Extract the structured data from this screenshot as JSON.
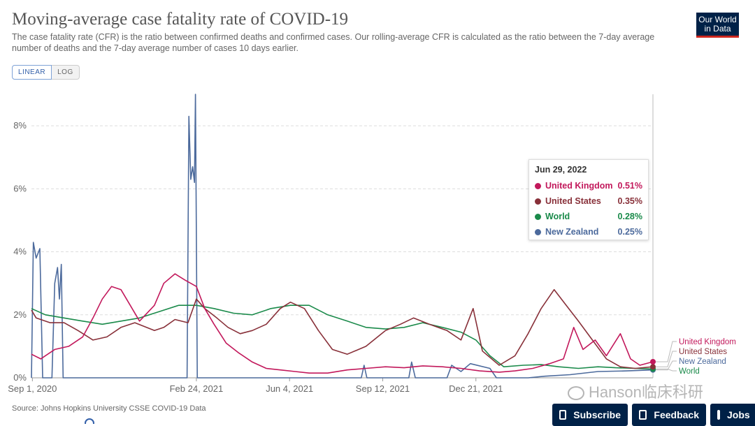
{
  "header": {
    "title": "Moving-average case fatality rate of COVID-19",
    "subtitle": "The case fatality rate (CFR) is the ratio between confirmed deaths and confirmed cases. Our rolling-average CFR is calculated as the ratio between the 7-day average number of deaths and the 7-day average number of cases 10 days earlier.",
    "logo_line1": "Our World",
    "logo_line2": "in Data"
  },
  "scale_toggle": {
    "linear": "LINEAR",
    "log": "LOG"
  },
  "tooltip": {
    "date": "Jun 29, 2022",
    "rows": [
      {
        "name": "United Kingdom",
        "value": "0.51%",
        "color": "#c2185b"
      },
      {
        "name": "United States",
        "value": "0.35%",
        "color": "#883039"
      },
      {
        "name": "World",
        "value": "0.28%",
        "color": "#1a8a4a"
      },
      {
        "name": "New Zealand",
        "value": "0.25%",
        "color": "#4c6a9c"
      }
    ]
  },
  "footer": {
    "source": "Source: Johns Hopkins University CSSE COVID-19 Data",
    "subscribe": "Subscribe",
    "feedback": "Feedback",
    "jobs": "Jobs"
  },
  "watermark": "Hanson临床科研",
  "chart_data": {
    "type": "line",
    "ylim": [
      0,
      9
    ],
    "y_ticks": [
      {
        "value": 0,
        "label": "0%"
      },
      {
        "value": 2,
        "label": "2%"
      },
      {
        "value": 4,
        "label": "4%"
      },
      {
        "value": 6,
        "label": "6%"
      },
      {
        "value": 8,
        "label": "8%"
      }
    ],
    "x_range": [
      "2020-08-31",
      "2022-06-29"
    ],
    "x_ticks": [
      {
        "date": "2020-09-01",
        "label": "Sep 1, 2020"
      },
      {
        "date": "2021-02-24",
        "label": "Feb 24, 2021"
      },
      {
        "date": "2021-06-04",
        "label": "Jun 4, 2021"
      },
      {
        "date": "2021-09-12",
        "label": "Sep 12, 2021"
      },
      {
        "date": "2021-12-21",
        "label": "Dec 21, 2021"
      }
    ],
    "series": [
      {
        "name": "United Kingdom",
        "color": "#c2185b",
        "points": [
          [
            "2020-08-31",
            0.75
          ],
          [
            "2020-09-10",
            0.6
          ],
          [
            "2020-09-25",
            0.9
          ],
          [
            "2020-10-10",
            1.0
          ],
          [
            "2020-10-25",
            1.3
          ],
          [
            "2020-11-05",
            1.9
          ],
          [
            "2020-11-15",
            2.5
          ],
          [
            "2020-11-25",
            2.9
          ],
          [
            "2020-12-05",
            2.8
          ],
          [
            "2020-12-15",
            2.3
          ],
          [
            "2020-12-25",
            1.8
          ],
          [
            "2021-01-10",
            2.3
          ],
          [
            "2021-01-20",
            3.0
          ],
          [
            "2021-02-01",
            3.3
          ],
          [
            "2021-02-12",
            3.1
          ],
          [
            "2021-02-24",
            2.9
          ],
          [
            "2021-03-05",
            2.2
          ],
          [
            "2021-03-15",
            1.7
          ],
          [
            "2021-03-28",
            1.1
          ],
          [
            "2021-04-10",
            0.8
          ],
          [
            "2021-04-25",
            0.5
          ],
          [
            "2021-05-10",
            0.3
          ],
          [
            "2021-05-25",
            0.25
          ],
          [
            "2021-06-10",
            0.2
          ],
          [
            "2021-06-25",
            0.15
          ],
          [
            "2021-07-15",
            0.15
          ],
          [
            "2021-08-05",
            0.25
          ],
          [
            "2021-08-25",
            0.3
          ],
          [
            "2021-09-15",
            0.35
          ],
          [
            "2021-10-05",
            0.32
          ],
          [
            "2021-10-25",
            0.38
          ],
          [
            "2021-11-15",
            0.35
          ],
          [
            "2021-12-05",
            0.3
          ],
          [
            "2021-12-25",
            0.22
          ],
          [
            "2022-01-15",
            0.18
          ],
          [
            "2022-02-01",
            0.22
          ],
          [
            "2022-02-20",
            0.3
          ],
          [
            "2022-03-10",
            0.45
          ],
          [
            "2022-03-25",
            0.6
          ],
          [
            "2022-04-05",
            1.6
          ],
          [
            "2022-04-15",
            0.9
          ],
          [
            "2022-04-28",
            1.2
          ],
          [
            "2022-05-10",
            0.7
          ],
          [
            "2022-05-25",
            1.4
          ],
          [
            "2022-06-05",
            0.6
          ],
          [
            "2022-06-15",
            0.4
          ],
          [
            "2022-06-29",
            0.51
          ]
        ]
      },
      {
        "name": "United States",
        "color": "#883039",
        "points": [
          [
            "2020-08-31",
            2.15
          ],
          [
            "2020-09-05",
            1.9
          ],
          [
            "2020-09-20",
            1.75
          ],
          [
            "2020-10-05",
            1.75
          ],
          [
            "2020-10-20",
            1.5
          ],
          [
            "2020-11-05",
            1.2
          ],
          [
            "2020-11-20",
            1.3
          ],
          [
            "2020-12-05",
            1.6
          ],
          [
            "2020-12-20",
            1.75
          ],
          [
            "2021-01-10",
            1.5
          ],
          [
            "2021-01-20",
            1.6
          ],
          [
            "2021-02-01",
            1.85
          ],
          [
            "2021-02-15",
            1.75
          ],
          [
            "2021-02-24",
            2.5
          ],
          [
            "2021-03-05",
            2.2
          ],
          [
            "2021-03-18",
            1.9
          ],
          [
            "2021-03-30",
            1.6
          ],
          [
            "2021-04-12",
            1.4
          ],
          [
            "2021-04-25",
            1.5
          ],
          [
            "2021-05-10",
            1.7
          ],
          [
            "2021-05-25",
            2.2
          ],
          [
            "2021-06-05",
            2.4
          ],
          [
            "2021-06-20",
            2.2
          ],
          [
            "2021-07-05",
            1.5
          ],
          [
            "2021-07-20",
            0.9
          ],
          [
            "2021-08-05",
            0.75
          ],
          [
            "2021-08-25",
            1.0
          ],
          [
            "2021-09-15",
            1.5
          ],
          [
            "2021-10-01",
            1.7
          ],
          [
            "2021-10-15",
            1.9
          ],
          [
            "2021-11-01",
            1.7
          ],
          [
            "2021-11-20",
            1.5
          ],
          [
            "2021-12-05",
            1.2
          ],
          [
            "2021-12-18",
            2.2
          ],
          [
            "2021-12-28",
            0.85
          ],
          [
            "2022-01-15",
            0.4
          ],
          [
            "2022-02-01",
            0.7
          ],
          [
            "2022-02-15",
            1.4
          ],
          [
            "2022-03-01",
            2.2
          ],
          [
            "2022-03-15",
            2.8
          ],
          [
            "2022-03-28",
            2.3
          ],
          [
            "2022-04-10",
            1.8
          ],
          [
            "2022-04-25",
            1.2
          ],
          [
            "2022-05-10",
            0.6
          ],
          [
            "2022-05-25",
            0.35
          ],
          [
            "2022-06-10",
            0.3
          ],
          [
            "2022-06-29",
            0.35
          ]
        ]
      },
      {
        "name": "World",
        "color": "#1a8a4a",
        "points": [
          [
            "2020-08-31",
            2.2
          ],
          [
            "2020-09-15",
            2.0
          ],
          [
            "2020-10-05",
            1.9
          ],
          [
            "2020-10-25",
            1.8
          ],
          [
            "2020-11-15",
            1.7
          ],
          [
            "2020-12-05",
            1.8
          ],
          [
            "2020-12-25",
            1.9
          ],
          [
            "2021-01-15",
            2.1
          ],
          [
            "2021-02-05",
            2.3
          ],
          [
            "2021-02-24",
            2.3
          ],
          [
            "2021-03-15",
            2.2
          ],
          [
            "2021-04-05",
            2.05
          ],
          [
            "2021-04-25",
            2.0
          ],
          [
            "2021-05-15",
            2.2
          ],
          [
            "2021-06-05",
            2.3
          ],
          [
            "2021-06-25",
            2.3
          ],
          [
            "2021-07-15",
            2.0
          ],
          [
            "2021-08-05",
            1.8
          ],
          [
            "2021-08-25",
            1.6
          ],
          [
            "2021-09-15",
            1.55
          ],
          [
            "2021-10-05",
            1.6
          ],
          [
            "2021-10-25",
            1.75
          ],
          [
            "2021-11-15",
            1.6
          ],
          [
            "2021-12-05",
            1.45
          ],
          [
            "2021-12-21",
            1.2
          ],
          [
            "2022-01-05",
            0.7
          ],
          [
            "2022-01-20",
            0.35
          ],
          [
            "2022-02-10",
            0.4
          ],
          [
            "2022-03-01",
            0.42
          ],
          [
            "2022-03-20",
            0.35
          ],
          [
            "2022-04-10",
            0.3
          ],
          [
            "2022-05-01",
            0.35
          ],
          [
            "2022-05-20",
            0.32
          ],
          [
            "2022-06-10",
            0.3
          ],
          [
            "2022-06-29",
            0.28
          ]
        ]
      },
      {
        "name": "New Zealand",
        "color": "#4c6a9c",
        "points": [
          [
            "2020-08-31",
            0.0
          ],
          [
            "2020-09-02",
            4.3
          ],
          [
            "2020-09-05",
            3.8
          ],
          [
            "2020-09-09",
            4.1
          ],
          [
            "2020-09-12",
            0.0
          ],
          [
            "2020-09-22",
            0.0
          ],
          [
            "2020-09-25",
            3.0
          ],
          [
            "2020-09-28",
            3.5
          ],
          [
            "2020-09-30",
            2.5
          ],
          [
            "2020-10-02",
            3.6
          ],
          [
            "2020-10-04",
            0.0
          ],
          [
            "2021-02-14",
            0.0
          ],
          [
            "2021-02-16",
            8.3
          ],
          [
            "2021-02-18",
            6.3
          ],
          [
            "2021-02-20",
            6.7
          ],
          [
            "2021-02-22",
            6.2
          ],
          [
            "2021-02-23",
            9.0
          ],
          [
            "2021-02-25",
            0.0
          ],
          [
            "2021-08-20",
            0.0
          ],
          [
            "2021-08-23",
            0.4
          ],
          [
            "2021-08-26",
            0.0
          ],
          [
            "2021-10-10",
            0.0
          ],
          [
            "2021-10-13",
            0.5
          ],
          [
            "2021-10-17",
            0.0
          ],
          [
            "2021-11-20",
            0.0
          ],
          [
            "2021-11-25",
            0.4
          ],
          [
            "2021-12-05",
            0.2
          ],
          [
            "2021-12-15",
            0.45
          ],
          [
            "2022-01-05",
            0.3
          ],
          [
            "2022-01-12",
            0.0
          ],
          [
            "2022-02-15",
            0.0
          ],
          [
            "2022-03-05",
            0.05
          ],
          [
            "2022-04-01",
            0.1
          ],
          [
            "2022-05-01",
            0.2
          ],
          [
            "2022-06-01",
            0.22
          ],
          [
            "2022-06-29",
            0.25
          ]
        ]
      }
    ],
    "end_labels": [
      "United Kingdom",
      "United States",
      "New Zealand",
      "World"
    ]
  }
}
